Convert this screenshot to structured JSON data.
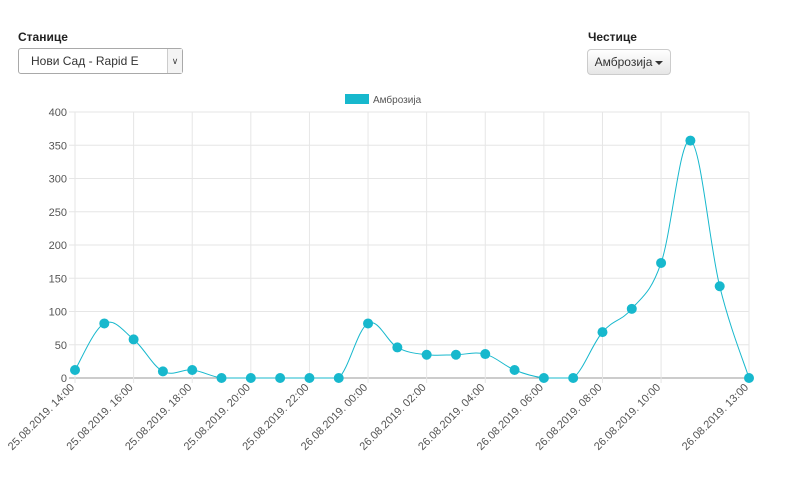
{
  "stations": {
    "label": "Станице",
    "selected": "Нови Сад - Rapid E"
  },
  "particles": {
    "label": "Честице",
    "selected": "Амброзија"
  },
  "colors": {
    "series": "#17b8cd",
    "grid": "#e6e6e6",
    "axis": "#999999"
  },
  "chart_data": {
    "type": "line",
    "legend": {
      "label": "Амброзија",
      "placement": "top-center"
    },
    "ylim": [
      0,
      400
    ],
    "yticks": [
      0,
      50,
      100,
      150,
      200,
      250,
      300,
      350,
      400
    ],
    "x_tick_labels": [
      "25.08.2019. 14:00",
      "25.08.2019. 16:00",
      "25.08.2019. 18:00",
      "25.08.2019. 20:00",
      "25.08.2019. 22:00",
      "26.08.2019. 00:00",
      "26.08.2019. 02:00",
      "26.08.2019. 04:00",
      "26.08.2019. 06:00",
      "26.08.2019. 08:00",
      "26.08.2019. 10:00",
      "26.08.2019. 13:00"
    ],
    "series": [
      {
        "name": "Амброзија",
        "points": [
          {
            "x": "25.08.2019. 14:00",
            "y": 12
          },
          {
            "x": "25.08.2019. 15:00",
            "y": 82
          },
          {
            "x": "25.08.2019. 16:00",
            "y": 58
          },
          {
            "x": "25.08.2019. 17:00",
            "y": 10
          },
          {
            "x": "25.08.2019. 18:00",
            "y": 12
          },
          {
            "x": "25.08.2019. 19:00",
            "y": 0
          },
          {
            "x": "25.08.2019. 20:00",
            "y": 0
          },
          {
            "x": "25.08.2019. 21:00",
            "y": 0
          },
          {
            "x": "25.08.2019. 22:00",
            "y": 0
          },
          {
            "x": "25.08.2019. 23:00",
            "y": 0
          },
          {
            "x": "26.08.2019. 00:00",
            "y": 82
          },
          {
            "x": "26.08.2019. 01:00",
            "y": 46
          },
          {
            "x": "26.08.2019. 02:00",
            "y": 35
          },
          {
            "x": "26.08.2019. 03:00",
            "y": 35
          },
          {
            "x": "26.08.2019. 04:00",
            "y": 36
          },
          {
            "x": "26.08.2019. 05:00",
            "y": 12
          },
          {
            "x": "26.08.2019. 06:00",
            "y": 0
          },
          {
            "x": "26.08.2019. 07:00",
            "y": 0
          },
          {
            "x": "26.08.2019. 08:00",
            "y": 69
          },
          {
            "x": "26.08.2019. 09:00",
            "y": 104
          },
          {
            "x": "26.08.2019. 10:00",
            "y": 173
          },
          {
            "x": "26.08.2019. 11:00",
            "y": 357
          },
          {
            "x": "26.08.2019. 12:00",
            "y": 138
          },
          {
            "x": "26.08.2019. 13:00",
            "y": 0
          }
        ]
      }
    ]
  }
}
